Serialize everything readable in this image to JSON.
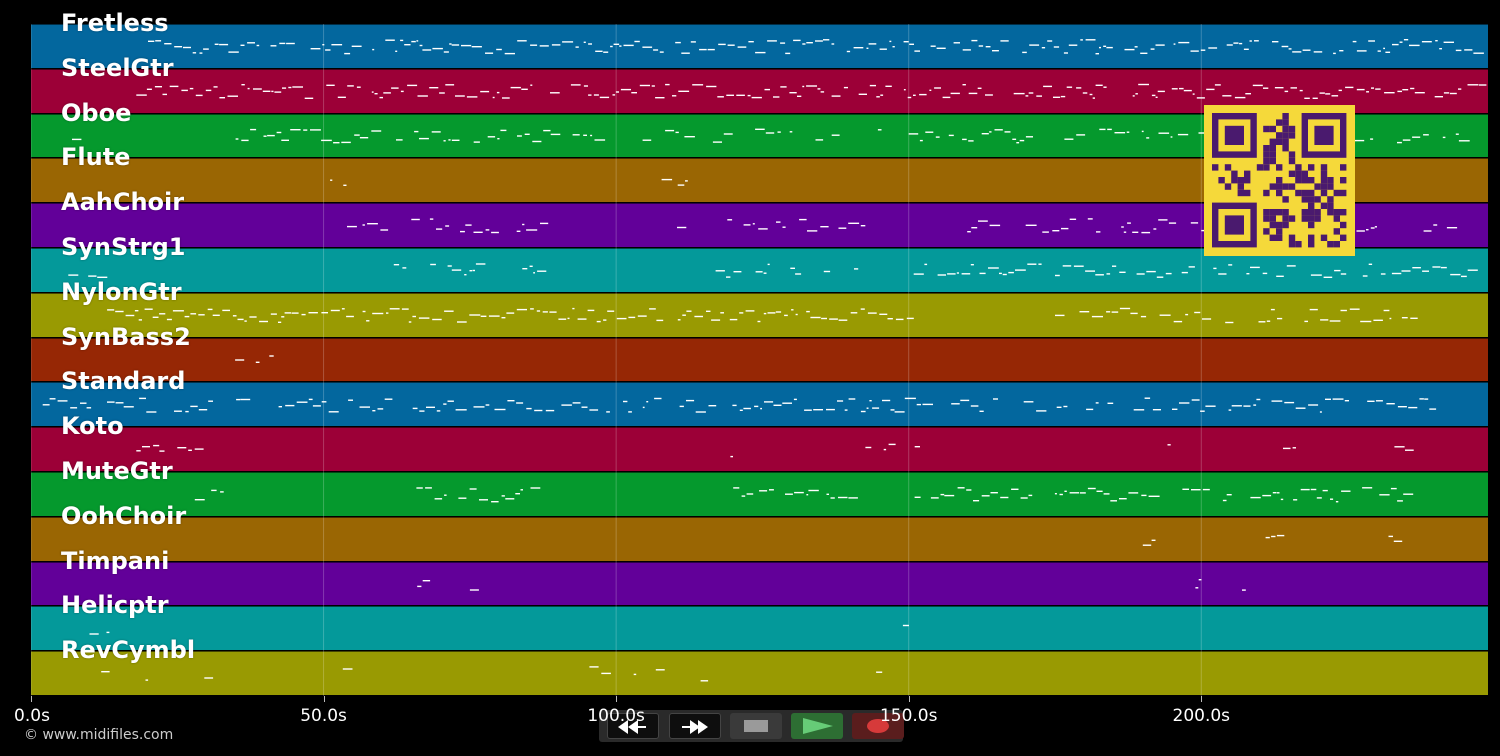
{
  "tracks": [
    {
      "label": "Fretless",
      "color": "#03679e"
    },
    {
      "label": "SteelGtr",
      "color": "#9c0037"
    },
    {
      "label": "Oboe",
      "color": "#05992d"
    },
    {
      "label": "Flute",
      "color": "#9a6603"
    },
    {
      "label": "AahChoir",
      "color": "#620099"
    },
    {
      "label": "SynStrg1",
      "color": "#04999a"
    },
    {
      "label": "NylonGtr",
      "color": "#999a02"
    },
    {
      "label": "SynBass2",
      "color": "#962705"
    },
    {
      "label": "Standard",
      "color": "#03679e"
    },
    {
      "label": "Koto",
      "color": "#9c0037"
    },
    {
      "label": "MuteGtr",
      "color": "#05992d"
    },
    {
      "label": "OohChoir",
      "color": "#9a6603"
    },
    {
      "label": "Timpani",
      "color": "#620099"
    },
    {
      "label": "Helicptr",
      "color": "#04999a"
    },
    {
      "label": "RevCymbl",
      "color": "#999a02"
    }
  ],
  "time_axis": {
    "max_seconds": 249,
    "ticks": [
      {
        "value": 0,
        "label": "0.0s"
      },
      {
        "value": 50,
        "label": "50.0s"
      },
      {
        "value": 100,
        "label": "100.0s"
      },
      {
        "value": 150,
        "label": "150.0s"
      },
      {
        "value": 200,
        "label": "200.0s"
      }
    ]
  },
  "copyright": "© www.midifiles.com",
  "qr": {
    "icon": "qr-code-icon",
    "fg": "#4a1a6e",
    "bg": "#f5d93a"
  },
  "transport": {
    "rewind": {
      "icon": "rewind-icon"
    },
    "fast_forward": {
      "icon": "fast-forward-icon"
    },
    "stop": {
      "icon": "stop-icon"
    },
    "play": {
      "icon": "play-icon"
    },
    "record": {
      "icon": "record-icon"
    }
  }
}
